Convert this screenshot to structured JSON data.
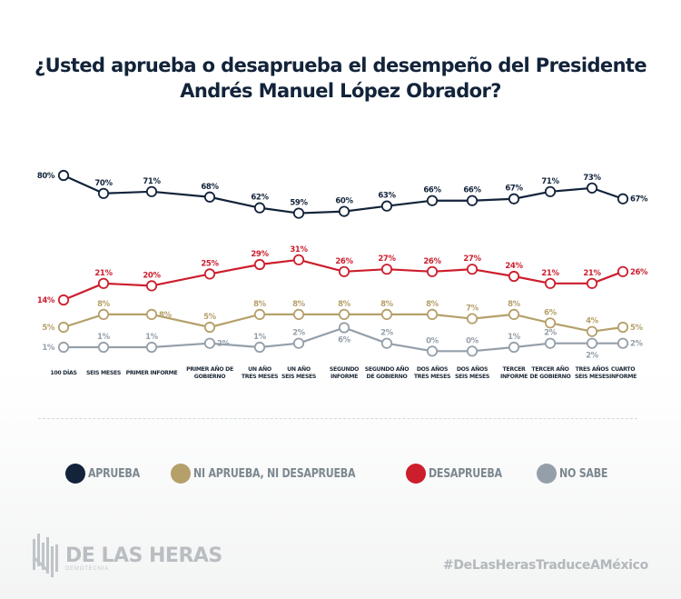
{
  "title": {
    "line1": "¿Usted aprueba o desaprueba el desempeño del Presidente",
    "line2": "Andrés Manuel López Obrador?"
  },
  "colors": {
    "aprueba": "#12233a",
    "ni": "#b5a06a",
    "desaprueba": "#cc1e2d",
    "no_sabe": "#949fa9"
  },
  "chart_data": {
    "type": "line",
    "title": "¿Usted aprueba o desaprueba el desempeño del Presidente Andrés Manuel López Obrador?",
    "xlabel": "",
    "ylabel": "",
    "unit": "%",
    "grid": false,
    "legend_position": "bottom",
    "categories": [
      [
        "100 DÍAS"
      ],
      [
        "SEIS MESES"
      ],
      [
        "PRIMER INFORME"
      ],
      [
        "PRIMER AÑO DE",
        "GOBIERNO"
      ],
      [
        "UN AÑO",
        "TRES MESES"
      ],
      [
        "UN AÑO",
        "SEIS MESES"
      ],
      [
        "SEGUNDO",
        "INFORME"
      ],
      [
        "SEGUNDO AÑO",
        "DE GOBIERNO"
      ],
      [
        "DOS AÑOS",
        "TRES MESES"
      ],
      [
        "DOS AÑOS",
        "SEIS MESES"
      ],
      [
        "TERCER",
        "INFORME"
      ],
      [
        "TERCER AÑO",
        "DE GOBIERNO"
      ],
      [
        "TRES AÑOS",
        "SEIS MESES"
      ],
      [
        "CUARTO",
        "INFORME"
      ]
    ],
    "series": [
      {
        "key": "aprueba",
        "name": "APRUEBA",
        "color": "#12233a",
        "values": [
          80,
          70,
          71,
          68,
          62,
          59,
          60,
          63,
          66,
          66,
          67,
          71,
          73,
          67
        ]
      },
      {
        "key": "desaprueba",
        "name": "DESAPRUEBA",
        "color": "#cc1e2d",
        "values": [
          14,
          21,
          20,
          25,
          29,
          31,
          26,
          27,
          26,
          27,
          24,
          21,
          21,
          26
        ]
      },
      {
        "key": "ni",
        "name": "NI APRUEBA, NI DESAPRUEBA",
        "color": "#b5a06a",
        "values": [
          5,
          8,
          8,
          5,
          8,
          8,
          8,
          8,
          8,
          7,
          8,
          6,
          4,
          5
        ]
      },
      {
        "key": "no_sabe",
        "name": "NO SABE",
        "color": "#949fa9",
        "values": [
          1,
          1,
          1,
          2,
          1,
          2,
          6,
          2,
          0,
          0,
          1,
          2,
          2,
          2
        ]
      }
    ]
  },
  "legend": [
    {
      "label": "APRUEBA",
      "color": "#12233a"
    },
    {
      "label": "NI APRUEBA, NI DESAPRUEBA",
      "color": "#b5a06a"
    },
    {
      "label": "DESAPRUEBA",
      "color": "#cc1e2d"
    },
    {
      "label": "NO SABE",
      "color": "#949fa9"
    }
  ],
  "footer": {
    "logo_name": "DE LAS HERAS",
    "logo_sub": "DEMOTECNIA",
    "hashtag": "#DeLasHerasTraduceAMéxico"
  }
}
